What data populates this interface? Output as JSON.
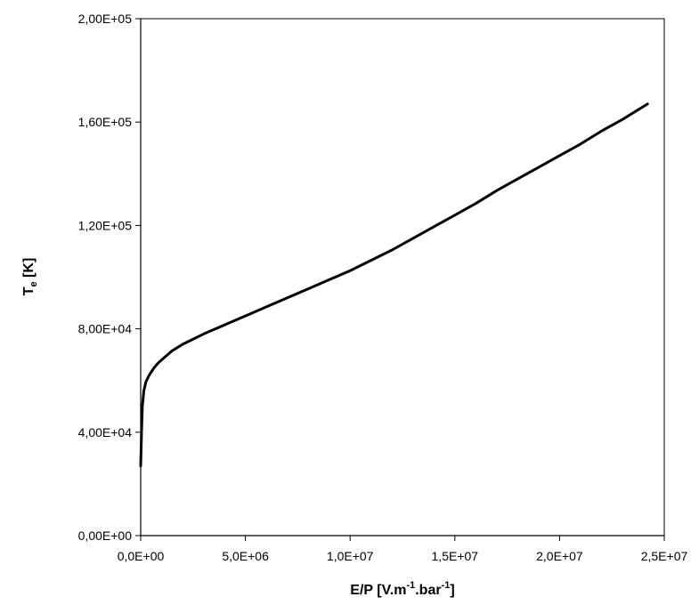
{
  "chart_data": {
    "type": "line",
    "title": "",
    "xlabel": {
      "main": "E/P [V.m",
      "sup1": "-1",
      "mid": ".bar",
      "sup2": "-1",
      "end": "]"
    },
    "ylabel": {
      "main": "T",
      "sub": "e",
      "end": " [K]"
    },
    "xlim": [
      0,
      25000000
    ],
    "ylim": [
      0,
      200000
    ],
    "x_ticks": [
      0,
      5000000,
      10000000,
      15000000,
      20000000,
      25000000
    ],
    "x_tick_labels": [
      "0,0E+00",
      "5,0E+06",
      "1,0E+07",
      "1,5E+07",
      "2,0E+07",
      "2,5E+07"
    ],
    "y_ticks": [
      0,
      40000,
      80000,
      120000,
      160000,
      200000
    ],
    "y_tick_labels": [
      "0,00E+00",
      "4,00E+04",
      "8,00E+04",
      "1,20E+05",
      "1,60E+05",
      "2,00E+05"
    ],
    "grid": false,
    "line_color": "#000000",
    "series": [
      {
        "x": [
          0,
          40000,
          80000,
          150000,
          250000,
          400000,
          600000,
          800000,
          1000000,
          1500000,
          2000000,
          2500000,
          3000000,
          4000000,
          5000000,
          6000000,
          7000000,
          8000000,
          9000000,
          10000000,
          11000000,
          12000000,
          13000000,
          14000000,
          15000000,
          16000000,
          17000000,
          18000000,
          19000000,
          20000000,
          21000000,
          22000000,
          23000000,
          24200000
        ],
        "y": [
          27000,
          40000,
          50000,
          56000,
          59500,
          62000,
          64500,
          66500,
          68000,
          71500,
          74000,
          76000,
          78000,
          81500,
          85000,
          88500,
          92000,
          95500,
          99000,
          102500,
          106500,
          110500,
          115000,
          119500,
          124000,
          128500,
          133500,
          138000,
          142500,
          147000,
          151500,
          156500,
          161000,
          167000
        ]
      }
    ]
  }
}
